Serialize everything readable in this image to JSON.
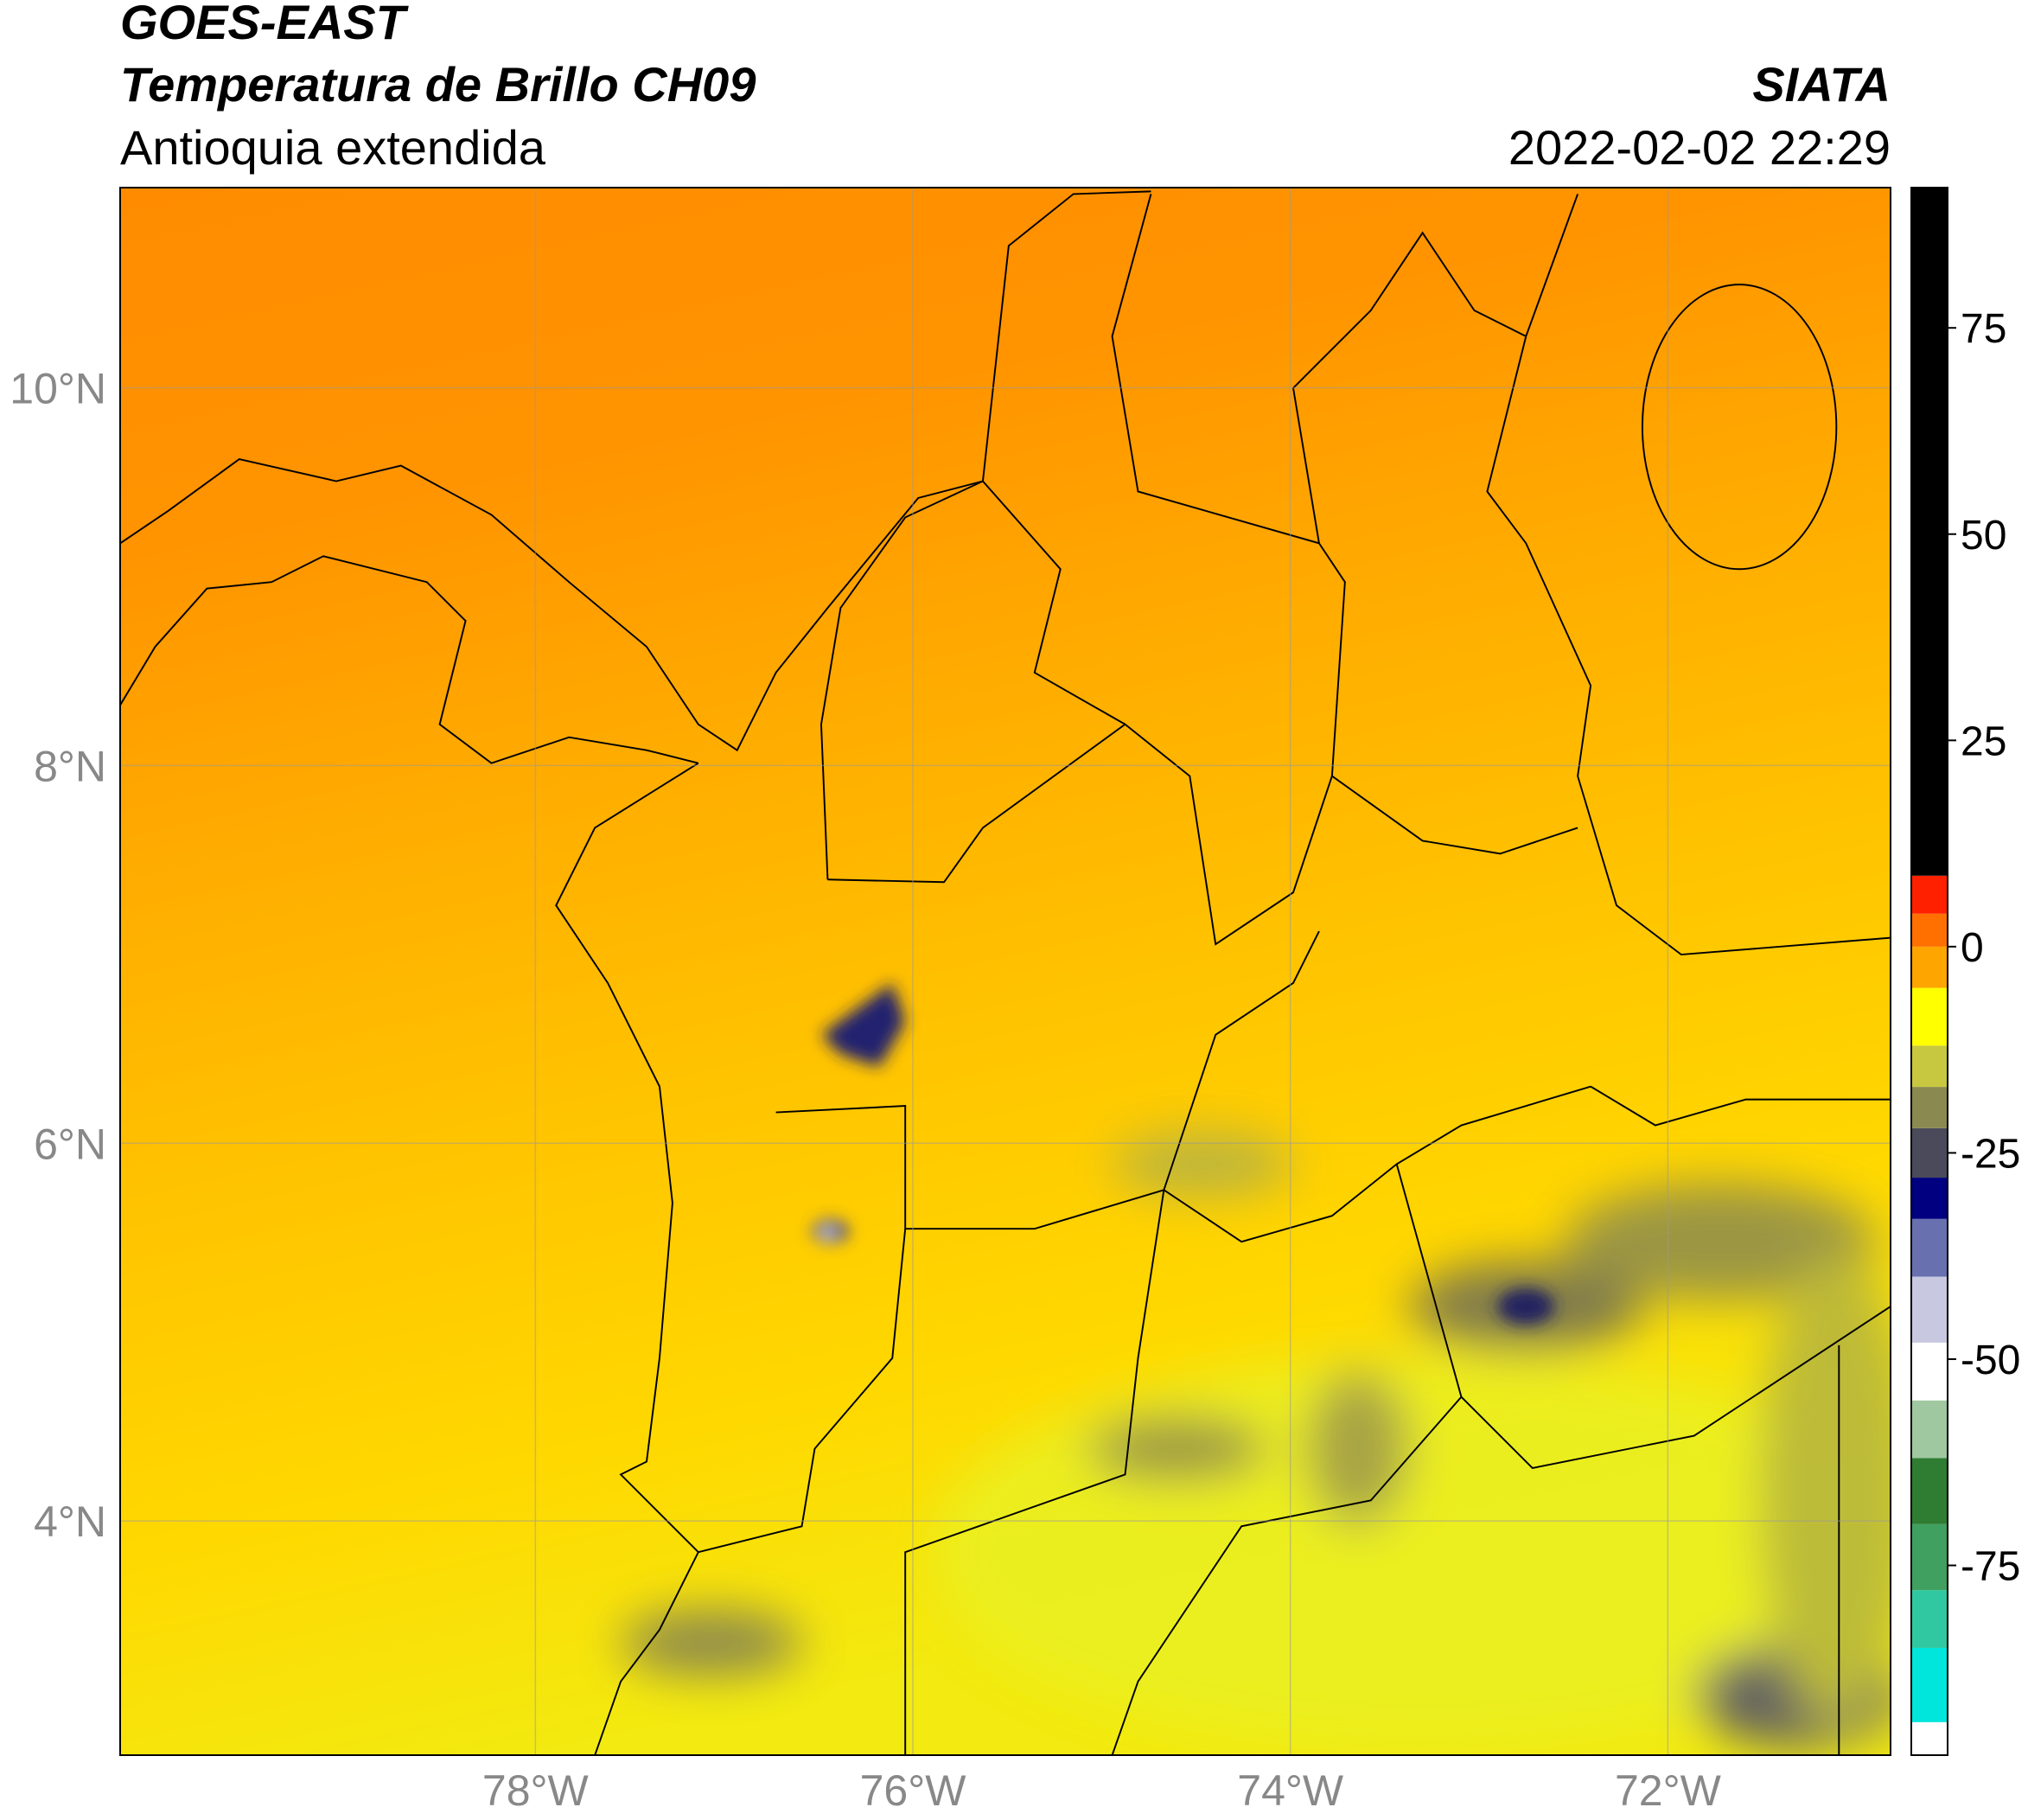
{
  "header": {
    "line1": "GOES-EAST",
    "line2": "Temperatura de Brillo CH09",
    "line3": "Antioquia extendida",
    "source": "SIATA",
    "datetime": "2022-02-02 22:29"
  },
  "map": {
    "xlim": [
      -80.2,
      -70.82
    ],
    "ylim": [
      2.76,
      11.06
    ],
    "xticks": [
      {
        "value": -78,
        "label": "78°W"
      },
      {
        "value": -76,
        "label": "76°W"
      },
      {
        "value": -74,
        "label": "74°W"
      },
      {
        "value": -72,
        "label": "72°W"
      }
    ],
    "yticks": [
      {
        "value": 4,
        "label": "4°N"
      },
      {
        "value": 6,
        "label": "6°N"
      },
      {
        "value": 8,
        "label": "8°N"
      },
      {
        "value": 10,
        "label": "10°N"
      }
    ],
    "grid": true
  },
  "colorbar": {
    "lim": [
      -98,
      92
    ],
    "ticks": [
      75,
      50,
      25,
      0,
      -25,
      -50,
      -75
    ],
    "stops": [
      {
        "value": -98,
        "color": "#ffffff"
      },
      {
        "value": -94,
        "color": "#00e5dc"
      },
      {
        "value": -85,
        "color": "#30c8a0"
      },
      {
        "value": -78,
        "color": "#40a060"
      },
      {
        "value": -70,
        "color": "#2e7d32"
      },
      {
        "value": -62,
        "color": "#a0c8a0"
      },
      {
        "value": -55,
        "color": "#ffffff"
      },
      {
        "value": -48,
        "color": "#c8c8e0"
      },
      {
        "value": -40,
        "color": "#6870b0"
      },
      {
        "value": -33,
        "color": "#000080"
      },
      {
        "value": -28,
        "color": "#4a4a5a"
      },
      {
        "value": -22,
        "color": "#8a8a50"
      },
      {
        "value": -17,
        "color": "#c8c840"
      },
      {
        "value": -12,
        "color": "#ffff00"
      },
      {
        "value": -5,
        "color": "#ffa500"
      },
      {
        "value": 0,
        "color": "#ff7000"
      },
      {
        "value": 4,
        "color": "#ff2000"
      },
      {
        "value": 8.6,
        "color": "#000000"
      }
    ]
  }
}
